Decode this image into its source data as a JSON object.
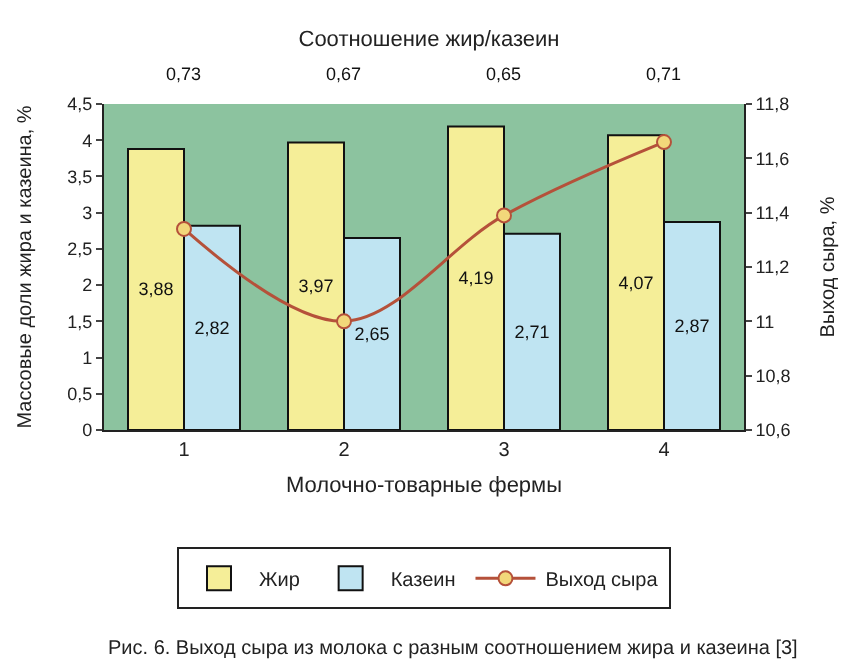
{
  "chart_data": {
    "type": "bar",
    "title": "Соотношение жир/казеин",
    "xlabel": "Молочно-товарные фермы",
    "ylabel": "Массовые доли жира и казеина, %",
    "y2label": "Выход сыра, %",
    "categories": [
      "1",
      "2",
      "3",
      "4"
    ],
    "series": [
      {
        "name": "Жир",
        "color": "#f5ee98",
        "values": [
          3.88,
          3.97,
          4.19,
          4.07
        ],
        "value_labels": [
          "3,88",
          "3,97",
          "4,19",
          "4,07"
        ]
      },
      {
        "name": "Казеин",
        "color": "#bfe4f2",
        "values": [
          2.82,
          2.65,
          2.71,
          2.87
        ],
        "value_labels": [
          "2,82",
          "2,65",
          "2,71",
          "2,87"
        ]
      },
      {
        "name": "Выход сыра",
        "type": "line",
        "axis": "y2",
        "color": "#b5513a",
        "values": [
          11.34,
          11.0,
          11.39,
          11.66
        ],
        "marker": "circle"
      }
    ],
    "ylim": [
      0,
      4.5
    ],
    "yticks": [
      0,
      {
        "value": 0.5,
        "label": "0,5"
      },
      1,
      {
        "value": 1.5,
        "label": "1,5"
      },
      2,
      {
        "value": 2.5,
        "label": "2,5"
      },
      3,
      {
        "value": 3.5,
        "label": "3,5"
      },
      4,
      {
        "value": 4.5,
        "label": "4,5"
      }
    ],
    "y2lim": [
      10.6,
      11.8
    ],
    "y2ticks": [
      {
        "value": 10.6,
        "label": "10,6"
      },
      {
        "value": 10.8,
        "label": "10,8"
      },
      11,
      {
        "value": 11.2,
        "label": "11,2"
      },
      {
        "value": 11.4,
        "label": "11,4"
      },
      {
        "value": 11.6,
        "label": "11,6"
      },
      {
        "value": 11.8,
        "label": "11,8"
      }
    ],
    "annotations": [
      "0,73",
      "0,67",
      "0,65",
      "0,71",
      "Рис. 6. Выход сыра из молока с разным соотношением жира и казеина [3]"
    ],
    "grid": false,
    "legend": "bottom"
  }
}
